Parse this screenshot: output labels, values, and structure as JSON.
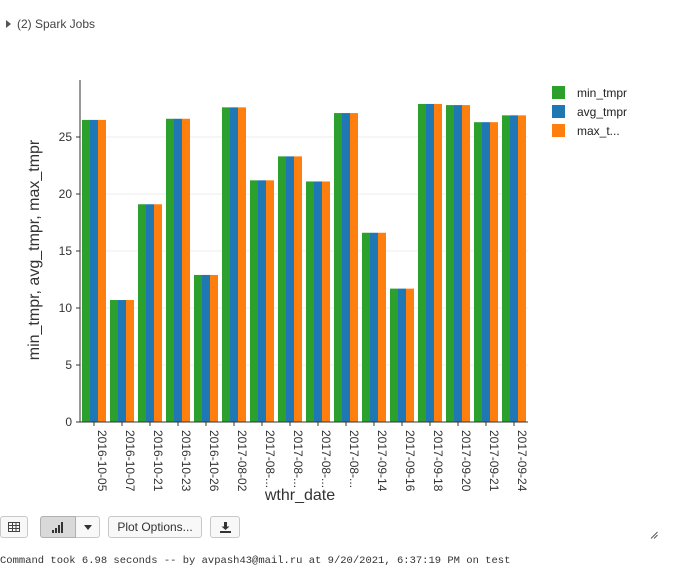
{
  "spark_jobs": {
    "label": "(2) Spark Jobs"
  },
  "chart_data": {
    "type": "bar",
    "categories": [
      "2016-10-05",
      "2016-10-07",
      "2016-10-21",
      "2016-10-23",
      "2016-10-26",
      "2017-08-02",
      "2017-08-...",
      "2017-08-...",
      "2017-08-...",
      "2017-08-...",
      "2017-09-14",
      "2017-09-16",
      "2017-09-18",
      "2017-09-20",
      "2017-09-21",
      "2017-09-24"
    ],
    "series": [
      {
        "name": "min_tmpr",
        "color": "#2ca02c",
        "values": [
          26.5,
          10.7,
          19.1,
          26.6,
          12.9,
          27.6,
          21.2,
          23.3,
          21.1,
          27.1,
          16.6,
          11.7,
          27.9,
          27.8,
          26.3,
          26.9
        ]
      },
      {
        "name": "avg_tmpr",
        "color": "#1f77b4",
        "values": [
          26.5,
          10.7,
          19.1,
          26.6,
          12.9,
          27.6,
          21.2,
          23.3,
          21.1,
          27.1,
          16.6,
          11.7,
          27.9,
          27.8,
          26.3,
          26.9
        ]
      },
      {
        "name": "max_t...",
        "color": "#ff7f0e",
        "values": [
          26.5,
          10.7,
          19.1,
          26.6,
          12.9,
          27.6,
          21.2,
          23.3,
          21.1,
          27.1,
          16.6,
          11.7,
          27.9,
          27.8,
          26.3,
          26.9
        ]
      }
    ],
    "xlabel": "wthr_date",
    "ylabel": "min_tmpr, avg_tmpr, max_tmpr",
    "ylim": [
      0,
      30
    ],
    "yticks": [
      0,
      5,
      10,
      15,
      20,
      25
    ],
    "grid": true,
    "legend_position": "right"
  },
  "toolbar": {
    "table_icon": "table-icon",
    "chart_icon": "bar-chart-icon",
    "dropdown_icon": "chevron-down-icon",
    "plot_options_label": "Plot Options...",
    "download_icon": "download-icon"
  },
  "status": {
    "text": "Command took 6.98 seconds -- by avpash43@mail.ru at 9/20/2021, 6:37:19 PM on test"
  }
}
